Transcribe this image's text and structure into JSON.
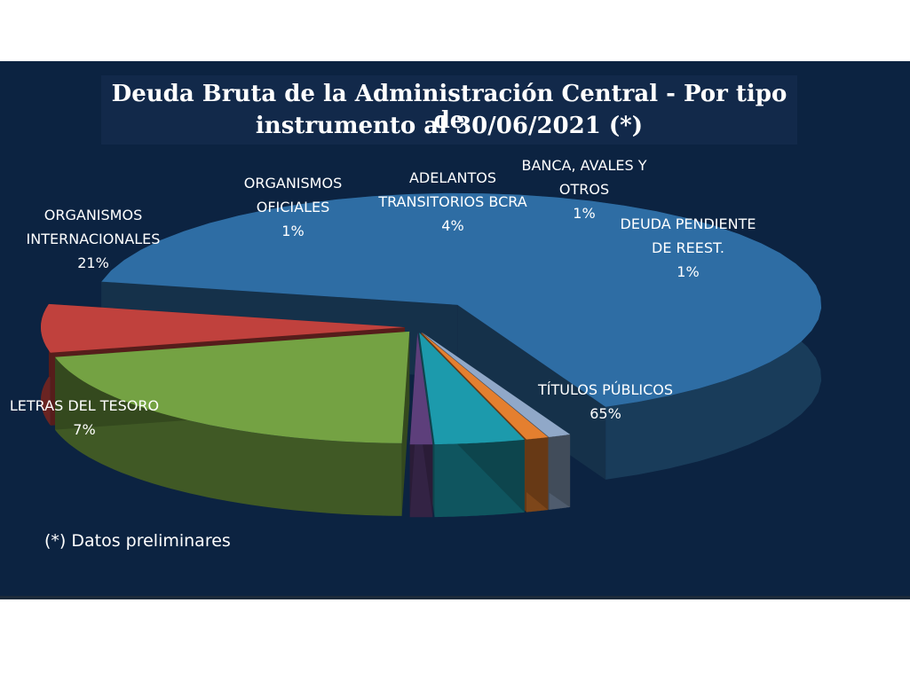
{
  "chart_data": {
    "type": "pie",
    "title": "Deuda Bruta de la Administración Central - Por tipo de",
    "subtitle": "instrumento al 30/06/2021 (*)",
    "slices": [
      {
        "label": "TÍTULOS PÚBLICOS",
        "value": 65,
        "value_label": "65%",
        "color": "#2e6da4",
        "exploded": true
      },
      {
        "label": "LETRAS DEL TESORO",
        "value": 7,
        "value_label": "7%",
        "color": "#c0413d"
      },
      {
        "label": "ORGANISMOS INTERNACIONALES",
        "value": 21,
        "value_label": "21%",
        "color": "#74a243"
      },
      {
        "label": "ORGANISMOS OFICIALES",
        "value": 1,
        "value_label": "1%",
        "color": "#5d3f7b"
      },
      {
        "label": "ADELANTOS TRANSITORIOS BCRA",
        "value": 4,
        "value_label": "4%",
        "color": "#1c9aac"
      },
      {
        "label": "BANCA, AVALES Y OTROS",
        "value": 1,
        "value_label": "1%",
        "color": "#e47f2f"
      },
      {
        "label": "DEUDA PENDIENTE DE REEST.",
        "value": 1,
        "value_label": "1%",
        "color": "#90a8c8"
      }
    ]
  },
  "labels": {
    "titulos": [
      "TÍTULOS PÚBLICOS",
      "65%"
    ],
    "letras": [
      "LETRAS  DEL TESORO",
      "7%"
    ],
    "org_int": [
      "ORGANISMOS",
      "INTERNACIONALES",
      "21%"
    ],
    "org_ofi": [
      "ORGANISMOS",
      "OFICIALES",
      "1%"
    ],
    "adelantos": [
      "ADELANTOS",
      "TRANSITORIOS BCRA",
      "4%"
    ],
    "banca": [
      "BANCA,  AVALES  Y",
      "OTROS",
      "1%"
    ],
    "deuda_pend": [
      "DEUDA  PENDIENTE",
      "DE REEST.",
      "1%"
    ]
  },
  "footnote": "(*) Datos preliminares"
}
